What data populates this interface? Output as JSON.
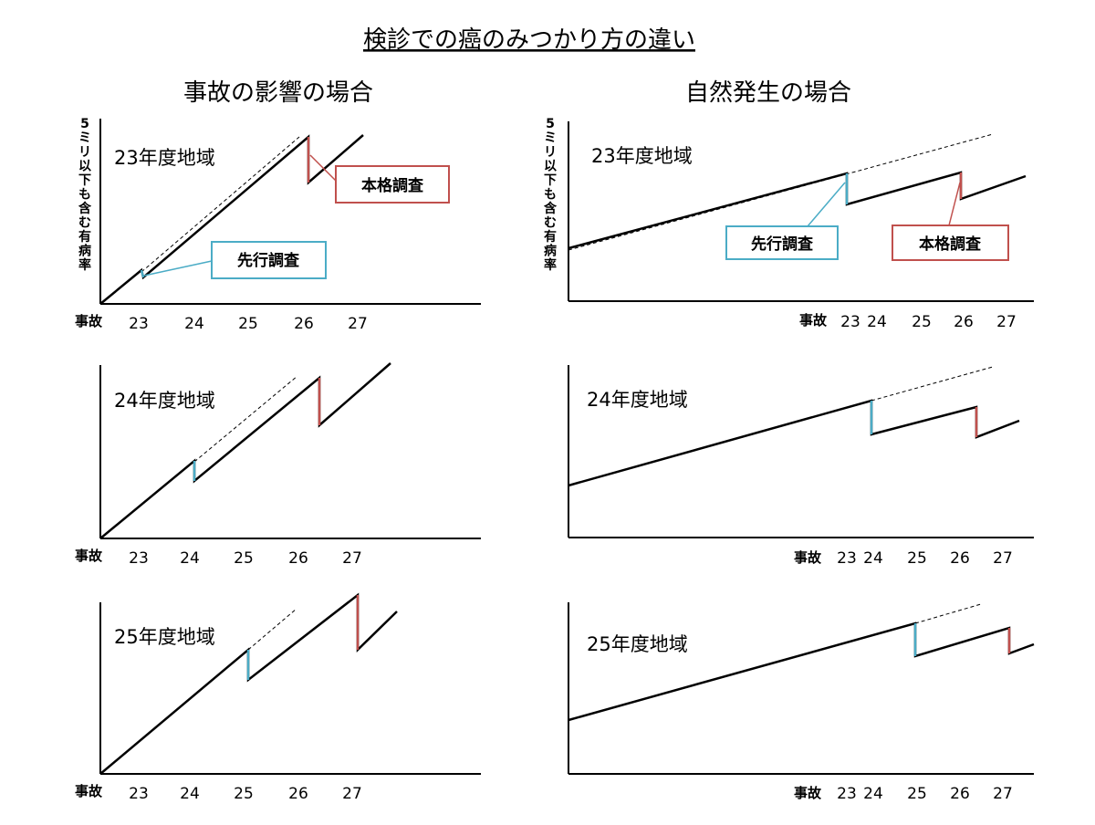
{
  "title": "検診での癌のみつかり方の違い",
  "columns": {
    "accident": {
      "title": "事故の影響の場合"
    },
    "natural": {
      "title": "自然発生の場合"
    }
  },
  "y_axis_label": "5ミリ以下も含む有病率",
  "origin_label": "事故",
  "x_ticks": [
    "23",
    "24",
    "25",
    "26",
    "27"
  ],
  "regions": [
    "23年度地域",
    "24年度地域",
    "25年度地域"
  ],
  "callouts": {
    "preliminary": "先行調査",
    "main": "本格調査"
  },
  "colors": {
    "preliminary": "#4bacc6",
    "main": "#c0504d",
    "line": "#000000"
  }
}
